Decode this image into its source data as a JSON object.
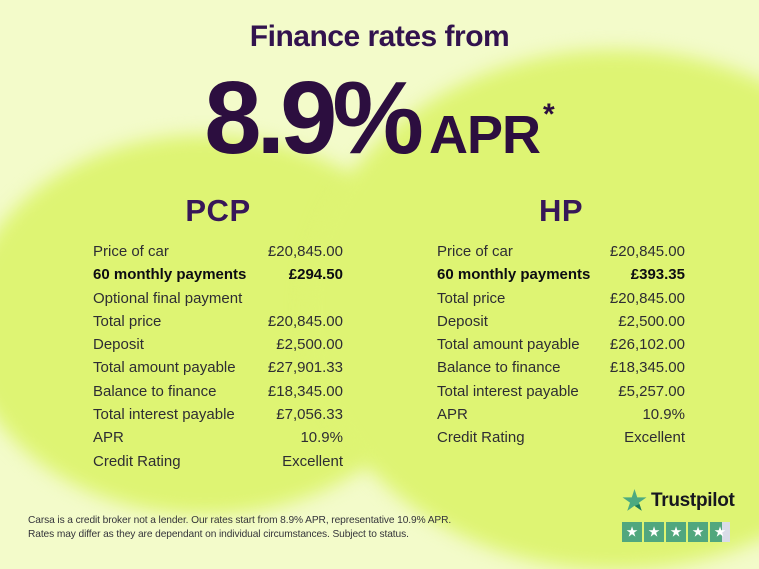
{
  "header": {
    "title": "Finance rates from",
    "rate": "8.9%",
    "rate_suffix": "APR",
    "rate_footnote": "*"
  },
  "columns": [
    {
      "name": "PCP",
      "rows": [
        {
          "label": "Price of car",
          "value": "£20,845.00"
        },
        {
          "label": "60 monthly payments",
          "value": "£294.50",
          "emphasis": true
        },
        {
          "label": "Optional final payment",
          "value": ""
        },
        {
          "label": "Total price",
          "value": "£20,845.00"
        },
        {
          "label": "Deposit",
          "value": "£2,500.00"
        },
        {
          "label": "Total amount payable",
          "value": "£27,901.33"
        },
        {
          "label": "Balance to finance",
          "value": "£18,345.00"
        },
        {
          "label": "Total interest payable",
          "value": "£7,056.33"
        },
        {
          "label": "APR",
          "value": "10.9%"
        },
        {
          "label": "Credit Rating",
          "value": "Excellent"
        }
      ]
    },
    {
      "name": "HP",
      "rows": [
        {
          "label": "Price of car",
          "value": "£20,845.00"
        },
        {
          "label": "60 monthly payments",
          "value": "£393.35",
          "emphasis": true
        },
        {
          "label": "Total price",
          "value": "£20,845.00"
        },
        {
          "label": "Deposit",
          "value": "£2,500.00"
        },
        {
          "label": "Total amount payable",
          "value": "£26,102.00"
        },
        {
          "label": "Balance to finance",
          "value": "£18,345.00"
        },
        {
          "label": "Total interest payable",
          "value": "£5,257.00"
        },
        {
          "label": "APR",
          "value": "10.9%"
        },
        {
          "label": "Credit Rating",
          "value": "Excellent"
        }
      ]
    }
  ],
  "disclaimer": {
    "line1": "Carsa is a credit broker not a lender. Our rates start from 8.9% APR, representative 10.9% APR.",
    "line2": "Rates may differ as they are dependant on individual circumstances. Subject to status."
  },
  "trustpilot": {
    "brand": "Trustpilot",
    "rating": "4.5 out of 5 stars",
    "star_glyph": "★"
  },
  "colors": {
    "background": "#f3fbca",
    "blob_green": "#def473",
    "headline_purple": "#32134e",
    "rate_purple": "#2c0e3f",
    "trustpilot_green": "#51a77e"
  }
}
